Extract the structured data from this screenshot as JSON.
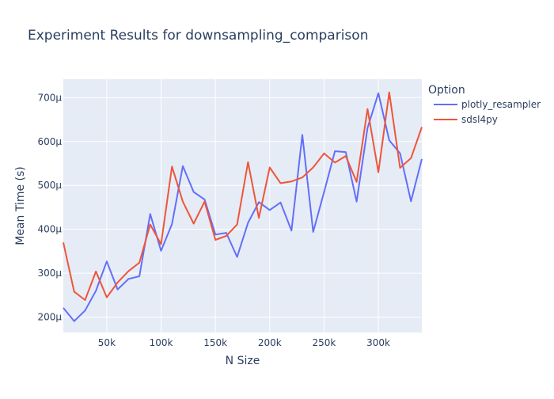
{
  "chart_data": {
    "type": "line",
    "title": "Experiment Results for downsampling_comparison",
    "xlabel": "N Size",
    "ylabel": "Mean Time (s)",
    "xlim": [
      10000,
      340000
    ],
    "ylim": [
      0.000165,
      0.000742
    ],
    "x_ticks": [
      {
        "value": 50000,
        "label": "50k"
      },
      {
        "value": 100000,
        "label": "100k"
      },
      {
        "value": 150000,
        "label": "150k"
      },
      {
        "value": 200000,
        "label": "200k"
      },
      {
        "value": 250000,
        "label": "250k"
      },
      {
        "value": 300000,
        "label": "300k"
      }
    ],
    "y_ticks": [
      {
        "value": 0.0002,
        "label": "200µ"
      },
      {
        "value": 0.0003,
        "label": "300µ"
      },
      {
        "value": 0.0004,
        "label": "400µ"
      },
      {
        "value": 0.0005,
        "label": "500µ"
      },
      {
        "value": 0.0006,
        "label": "600µ"
      },
      {
        "value": 0.0007,
        "label": "700µ"
      }
    ],
    "legend": {
      "title": "Option",
      "position": "right"
    },
    "grid": true,
    "x": [
      10000,
      20000,
      30000,
      40000,
      50000,
      60000,
      70000,
      80000,
      90000,
      100000,
      110000,
      120000,
      130000,
      140000,
      150000,
      160000,
      170000,
      180000,
      190000,
      200000,
      210000,
      220000,
      230000,
      240000,
      250000,
      260000,
      270000,
      280000,
      290000,
      300000,
      310000,
      320000,
      330000,
      340000
    ],
    "series": [
      {
        "name": "plotly_resampler",
        "color": "#636efa",
        "values": [
          0.000221,
          0.000191,
          0.000215,
          0.00026,
          0.000327,
          0.000263,
          0.000287,
          0.000293,
          0.000435,
          0.000351,
          0.000412,
          0.000544,
          0.000485,
          0.000468,
          0.000388,
          0.000392,
          0.000337,
          0.000415,
          0.000462,
          0.000444,
          0.000461,
          0.000397,
          0.000615,
          0.000394,
          0.000485,
          0.000578,
          0.000576,
          0.000463,
          0.000631,
          0.00071,
          0.000603,
          0.000573,
          0.000464,
          0.00056
        ]
      },
      {
        "name": "sdsl4py",
        "color": "#ef553b",
        "values": [
          0.00037,
          0.000258,
          0.000239,
          0.000304,
          0.000245,
          0.000279,
          0.000305,
          0.000324,
          0.000411,
          0.000366,
          0.000543,
          0.000463,
          0.000413,
          0.000463,
          0.000376,
          0.000385,
          0.000411,
          0.000553,
          0.000426,
          0.000541,
          0.000505,
          0.000509,
          0.000518,
          0.000541,
          0.000573,
          0.000552,
          0.000567,
          0.000508,
          0.000674,
          0.00053,
          0.000712,
          0.00054,
          0.000562,
          0.000633
        ]
      }
    ]
  }
}
